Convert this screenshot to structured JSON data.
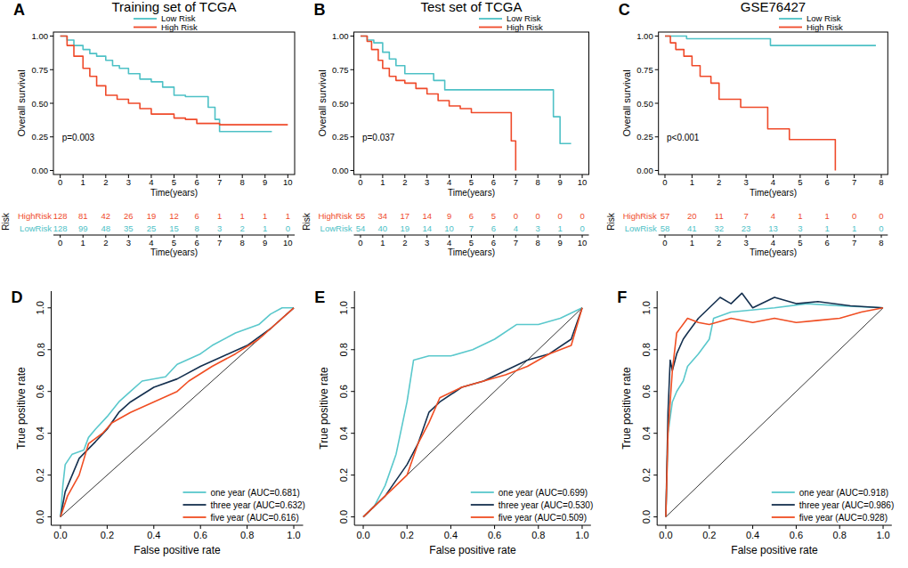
{
  "chart_data": [
    {
      "type": "step",
      "panel_label": "A",
      "title": "Training set of TCGA",
      "x_label": "Time(years)",
      "y_label": "Overall survival",
      "xlim": [
        -0.3,
        10.3
      ],
      "ylim": [
        -0.03,
        1.03
      ],
      "xticks": [
        0,
        1,
        2,
        3,
        4,
        5,
        6,
        7,
        8,
        9,
        10
      ],
      "yticks": [
        {
          "value": 0,
          "label": "0.00"
        },
        0.25,
        {
          "value": 0.5,
          "label": "0.50"
        },
        0.75,
        {
          "value": 1,
          "label": "1.00"
        }
      ],
      "grid": false,
      "legend": "top",
      "annotations": [
        "p=0.003"
      ],
      "series": [
        {
          "name": "Low Risk",
          "color": "#4ec1c6",
          "x": [
            0,
            0.3,
            0.6,
            1,
            1.3,
            1.6,
            2,
            2.3,
            2.6,
            3,
            3.5,
            4,
            4.5,
            5,
            5.5,
            6.5,
            6.8,
            7,
            9.3
          ],
          "values": [
            1,
            0.97,
            0.93,
            0.9,
            0.87,
            0.85,
            0.82,
            0.78,
            0.76,
            0.72,
            0.68,
            0.66,
            0.62,
            0.56,
            0.55,
            0.47,
            0.38,
            0.29,
            0.29
          ]
        },
        {
          "name": "High Risk",
          "color": "#ef4a2a",
          "x": [
            0,
            0.3,
            0.6,
            1,
            1.3,
            1.6,
            2,
            2.5,
            3,
            3.5,
            4,
            5,
            5.5,
            6,
            7,
            10
          ],
          "values": [
            1,
            0.93,
            0.85,
            0.76,
            0.7,
            0.63,
            0.56,
            0.53,
            0.5,
            0.46,
            0.42,
            0.39,
            0.38,
            0.35,
            0.34,
            0.34
          ]
        }
      ],
      "risk_table": {
        "title": "Risk",
        "x_label": "Time(years)",
        "rows": [
          {
            "name": "HighRisk",
            "color": "#ef4a2a",
            "values": [
              128,
              81,
              42,
              26,
              19,
              12,
              6,
              1,
              1,
              1,
              1
            ]
          },
          {
            "name": "LowRisk",
            "color": "#4ec1c6",
            "values": [
              128,
              99,
              48,
              35,
              25,
              15,
              8,
              3,
              2,
              1,
              0
            ]
          }
        ]
      }
    },
    {
      "type": "step",
      "panel_label": "B",
      "title": "Test set of TCGA",
      "x_label": "Time(years)",
      "y_label": "Overall survival",
      "xlim": [
        -0.3,
        10.3
      ],
      "ylim": [
        -0.03,
        1.03
      ],
      "xticks": [
        0,
        1,
        2,
        3,
        4,
        5,
        6,
        7,
        8,
        9,
        10
      ],
      "yticks": [
        {
          "value": 0,
          "label": "0.00"
        },
        0.25,
        {
          "value": 0.5,
          "label": "0.50"
        },
        0.75,
        {
          "value": 1,
          "label": "1.00"
        }
      ],
      "grid": false,
      "legend": "top",
      "annotations": [
        "p=0.037"
      ],
      "series": [
        {
          "name": "Low Risk",
          "color": "#4ec1c6",
          "x": [
            0,
            0.3,
            0.6,
            1,
            1.3,
            1.6,
            2,
            3.3,
            3.8,
            8.5,
            8.7,
            9,
            9.5
          ],
          "values": [
            1,
            0.97,
            0.95,
            0.88,
            0.83,
            0.78,
            0.72,
            0.67,
            0.6,
            0.6,
            0.4,
            0.2,
            0.2
          ]
        },
        {
          "name": "High Risk",
          "color": "#ef4a2a",
          "x": [
            0,
            0.3,
            0.5,
            0.8,
            1,
            1.3,
            1.6,
            2,
            2.5,
            3,
            3.5,
            4,
            4.5,
            5,
            6.8,
            7
          ],
          "values": [
            1,
            0.96,
            0.9,
            0.82,
            0.76,
            0.7,
            0.67,
            0.65,
            0.61,
            0.57,
            0.52,
            0.48,
            0.46,
            0.43,
            0.22,
            0
          ]
        }
      ],
      "risk_table": {
        "title": "Risk",
        "x_label": "Time(years)",
        "rows": [
          {
            "name": "HighRisk",
            "color": "#ef4a2a",
            "values": [
              55,
              34,
              17,
              14,
              9,
              6,
              5,
              0,
              0,
              0,
              0
            ]
          },
          {
            "name": "LowRisk",
            "color": "#4ec1c6",
            "values": [
              54,
              40,
              19,
              14,
              10,
              7,
              6,
              4,
              3,
              1,
              0
            ]
          }
        ]
      }
    },
    {
      "type": "step",
      "panel_label": "C",
      "title": "GSE76427",
      "x_label": "Time(years)",
      "y_label": "Overall survival",
      "xlim": [
        -0.24,
        8.24
      ],
      "ylim": [
        -0.03,
        1.03
      ],
      "xticks": [
        0,
        1,
        2,
        3,
        4,
        5,
        6,
        7,
        8
      ],
      "yticks": [
        {
          "value": 0,
          "label": "0.00"
        },
        0.25,
        {
          "value": 0.5,
          "label": "0.50"
        },
        0.75,
        {
          "value": 1,
          "label": "1.00"
        }
      ],
      "grid": false,
      "legend": "top",
      "annotations": [
        "p<0.001"
      ],
      "series": [
        {
          "name": "Low Risk",
          "color": "#4ec1c6",
          "x": [
            0,
            0.8,
            3.9,
            7.8
          ],
          "values": [
            1,
            0.98,
            0.93,
            0.93
          ]
        },
        {
          "name": "High Risk",
          "color": "#ef4a2a",
          "x": [
            0,
            0.2,
            0.4,
            0.7,
            1,
            1.3,
            1.7,
            2,
            2.8,
            3.8,
            4.6,
            6.3
          ],
          "values": [
            1,
            0.95,
            0.9,
            0.85,
            0.78,
            0.7,
            0.65,
            0.53,
            0.47,
            0.31,
            0.23,
            0
          ]
        }
      ],
      "risk_table": {
        "title": "Risk",
        "x_label": "Time(years)",
        "rows": [
          {
            "name": "HighRisk",
            "color": "#ef4a2a",
            "values": [
              57,
              20,
              11,
              7,
              4,
              1,
              1,
              0,
              0
            ]
          },
          {
            "name": "LowRisk",
            "color": "#4ec1c6",
            "values": [
              58,
              41,
              32,
              23,
              13,
              3,
              1,
              1,
              0
            ]
          }
        ]
      }
    },
    {
      "type": "line",
      "panel_label": "D",
      "x_label": "False positive rate",
      "y_label": "True positive rate",
      "xlim": [
        -0.04,
        1.04
      ],
      "ylim": [
        -0.04,
        1.08
      ],
      "xticks": [
        {
          "value": 0,
          "label": "0.0"
        },
        0.2,
        0.4,
        0.6,
        0.8,
        {
          "value": 1,
          "label": "1.0"
        }
      ],
      "yticks": [
        {
          "value": 0,
          "label": "0.0"
        },
        0.2,
        0.4,
        0.6,
        0.8,
        {
          "value": 1,
          "label": "1.0"
        }
      ],
      "grid": false,
      "legend": "bottom-right",
      "series": [
        {
          "name": "one year (AUC=0.681)",
          "color": "#5ac8cc",
          "x": [
            0,
            0.01,
            0.02,
            0.05,
            0.1,
            0.12,
            0.15,
            0.2,
            0.25,
            0.3,
            0.35,
            0.45,
            0.5,
            0.6,
            0.65,
            0.75,
            0.85,
            0.9,
            0.95,
            1
          ],
          "values": [
            0,
            0.15,
            0.25,
            0.3,
            0.32,
            0.38,
            0.42,
            0.48,
            0.55,
            0.6,
            0.65,
            0.67,
            0.73,
            0.78,
            0.82,
            0.88,
            0.92,
            0.97,
            1,
            1
          ]
        },
        {
          "name": "three year (AUC=0.632)",
          "color": "#15304f",
          "x": [
            0,
            0.02,
            0.05,
            0.08,
            0.15,
            0.2,
            0.25,
            0.3,
            0.4,
            0.5,
            0.6,
            0.7,
            0.8,
            0.9,
            0.95,
            1
          ],
          "values": [
            0,
            0.12,
            0.2,
            0.28,
            0.36,
            0.42,
            0.5,
            0.55,
            0.62,
            0.66,
            0.72,
            0.77,
            0.82,
            0.9,
            0.95,
            1
          ]
        },
        {
          "name": "five year (AUC=0.616)",
          "color": "#f04e23",
          "x": [
            0,
            0.03,
            0.08,
            0.12,
            0.18,
            0.22,
            0.3,
            0.4,
            0.5,
            0.55,
            0.65,
            0.75,
            0.85,
            0.9,
            1
          ],
          "values": [
            0,
            0.1,
            0.2,
            0.35,
            0.4,
            0.45,
            0.5,
            0.55,
            0.6,
            0.65,
            0.72,
            0.78,
            0.85,
            0.9,
            1
          ]
        }
      ]
    },
    {
      "type": "line",
      "panel_label": "E",
      "x_label": "False positive rate",
      "y_label": "True positive rate",
      "xlim": [
        -0.04,
        1.04
      ],
      "ylim": [
        -0.04,
        1.08
      ],
      "xticks": [
        {
          "value": 0,
          "label": "0.0"
        },
        0.2,
        0.4,
        0.6,
        0.8,
        {
          "value": 1,
          "label": "1.0"
        }
      ],
      "yticks": [
        {
          "value": 0,
          "label": "0.0"
        },
        0.2,
        0.4,
        0.6,
        0.8,
        {
          "value": 1,
          "label": "1.0"
        }
      ],
      "grid": false,
      "legend": "bottom-right",
      "series": [
        {
          "name": "one year (AUC=0.699)",
          "color": "#5ac8cc",
          "x": [
            0,
            0.05,
            0.1,
            0.15,
            0.2,
            0.23,
            0.3,
            0.4,
            0.5,
            0.6,
            0.7,
            0.8,
            0.9,
            1
          ],
          "values": [
            0,
            0.05,
            0.15,
            0.3,
            0.55,
            0.75,
            0.77,
            0.77,
            0.8,
            0.85,
            0.92,
            0.92,
            0.95,
            1
          ]
        },
        {
          "name": "three year (AUC=0.530)",
          "color": "#15304f",
          "x": [
            0,
            0.1,
            0.2,
            0.25,
            0.3,
            0.35,
            0.45,
            0.55,
            0.65,
            0.75,
            0.85,
            0.95,
            1
          ],
          "values": [
            0,
            0.1,
            0.25,
            0.35,
            0.5,
            0.55,
            0.62,
            0.65,
            0.7,
            0.75,
            0.78,
            0.85,
            1
          ]
        },
        {
          "name": "five year (AUC=0.509)",
          "color": "#f04e23",
          "x": [
            0,
            0.1,
            0.2,
            0.25,
            0.3,
            0.35,
            0.45,
            0.55,
            0.65,
            0.75,
            0.85,
            0.95,
            1
          ],
          "values": [
            0,
            0.1,
            0.2,
            0.35,
            0.45,
            0.57,
            0.62,
            0.65,
            0.68,
            0.72,
            0.78,
            0.82,
            1
          ]
        }
      ]
    },
    {
      "type": "line",
      "panel_label": "F",
      "x_label": "False positive rate",
      "y_label": "True positive rate",
      "xlim": [
        -0.04,
        1.04
      ],
      "ylim": [
        -0.04,
        1.08
      ],
      "xticks": [
        {
          "value": 0,
          "label": "0.0"
        },
        0.2,
        0.4,
        0.6,
        0.8,
        {
          "value": 1,
          "label": "1.0"
        }
      ],
      "yticks": [
        {
          "value": 0,
          "label": "0.0"
        },
        0.2,
        0.4,
        0.6,
        0.8,
        {
          "value": 1,
          "label": "1.0"
        }
      ],
      "grid": false,
      "legend": "bottom-right",
      "series": [
        {
          "name": "one year (AUC=0.918)",
          "color": "#5ac8cc",
          "x": [
            0,
            0.01,
            0.03,
            0.05,
            0.08,
            0.1,
            0.15,
            0.2,
            0.22,
            0.3,
            0.5,
            0.65,
            0.8,
            1
          ],
          "values": [
            0,
            0.4,
            0.55,
            0.6,
            0.65,
            0.72,
            0.78,
            0.85,
            0.95,
            0.98,
            1,
            1.02,
            1.01,
            1
          ]
        },
        {
          "name": "three year (AUC=0.986)",
          "color": "#15304f",
          "x": [
            0,
            0.01,
            0.02,
            0.03,
            0.05,
            0.08,
            0.1,
            0.15,
            0.2,
            0.25,
            0.3,
            0.35,
            0.4,
            0.5,
            0.6,
            0.7,
            0.85,
            1
          ],
          "values": [
            0,
            0.5,
            0.75,
            0.7,
            0.78,
            0.85,
            0.88,
            0.95,
            1,
            1.05,
            1.02,
            1.07,
            1,
            1.05,
            1.02,
            1.03,
            1.01,
            1
          ]
        },
        {
          "name": "five year (AUC=0.928)",
          "color": "#f04e23",
          "x": [
            0,
            0.01,
            0.03,
            0.05,
            0.1,
            0.15,
            0.2,
            0.3,
            0.4,
            0.5,
            0.6,
            0.7,
            0.8,
            0.9,
            1
          ],
          "values": [
            0,
            0.4,
            0.7,
            0.88,
            0.95,
            0.93,
            0.92,
            0.95,
            0.93,
            0.95,
            0.93,
            0.94,
            0.95,
            0.98,
            1
          ]
        }
      ]
    }
  ]
}
